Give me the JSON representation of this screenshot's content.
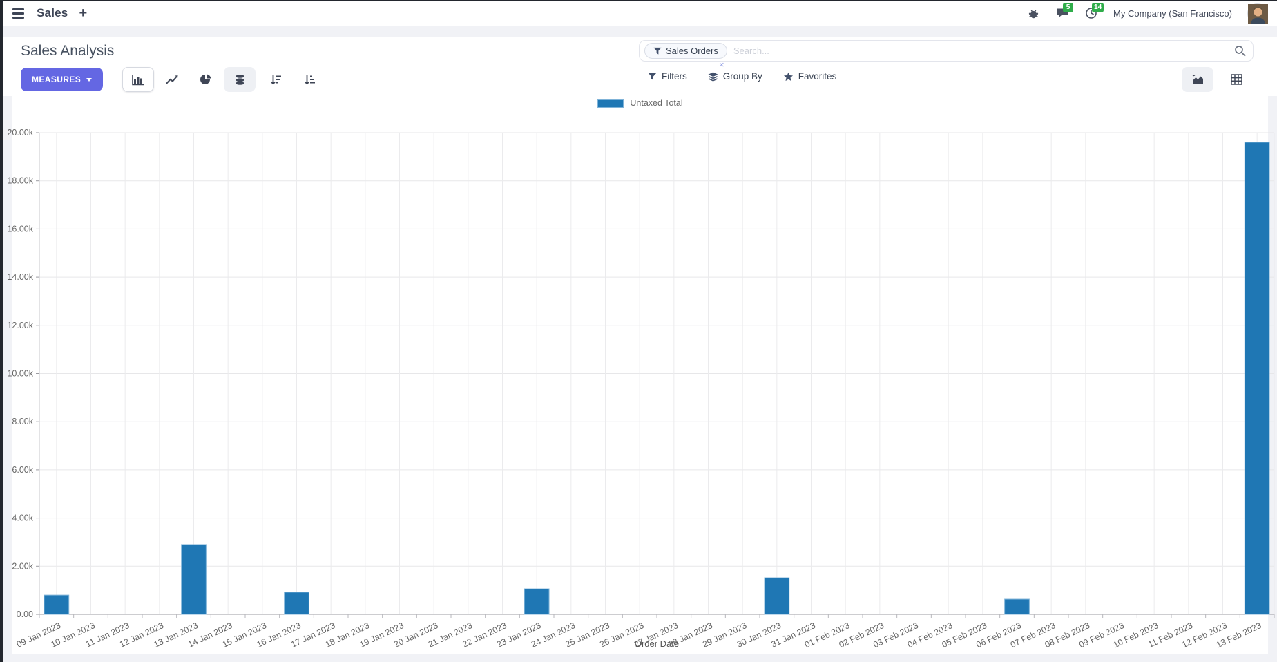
{
  "navbar": {
    "app_name": "Sales",
    "plus_label": "+",
    "messages_badge": "5",
    "activities_badge": "14",
    "company": "My Company (San Francisco)"
  },
  "control_panel": {
    "title": "Sales Analysis",
    "measures_label": "MEASURES",
    "search": {
      "facet": "Sales Orders",
      "placeholder": "Search...",
      "facet_remove": "×"
    },
    "filters_label": "Filters",
    "group_by_label": "Group By",
    "favorites_label": "Favorites"
  },
  "chart_data": {
    "type": "bar",
    "title": "",
    "legend_label": "Untaxed Total",
    "legend_position": "top",
    "series_color": "#1f77b4",
    "series_border_color": "#7fb3d8",
    "grid": true,
    "xlabel": "Order Date",
    "ylabel": "",
    "ylim": [
      0,
      20000
    ],
    "y_tick_step": 2000,
    "y_ticks": [
      "0.00",
      "2.00k",
      "4.00k",
      "6.00k",
      "8.00k",
      "10.00k",
      "12.00k",
      "14.00k",
      "16.00k",
      "18.00k",
      "20.00k"
    ],
    "categories": [
      "09 Jan 2023",
      "10 Jan 2023",
      "11 Jan 2023",
      "12 Jan 2023",
      "13 Jan 2023",
      "14 Jan 2023",
      "15 Jan 2023",
      "16 Jan 2023",
      "17 Jan 2023",
      "18 Jan 2023",
      "19 Jan 2023",
      "20 Jan 2023",
      "21 Jan 2023",
      "22 Jan 2023",
      "23 Jan 2023",
      "24 Jan 2023",
      "25 Jan 2023",
      "26 Jan 2023",
      "27 Jan 2023",
      "28 Jan 2023",
      "29 Jan 2023",
      "30 Jan 2023",
      "31 Jan 2023",
      "01 Feb 2023",
      "02 Feb 2023",
      "03 Feb 2023",
      "04 Feb 2023",
      "05 Feb 2023",
      "06 Feb 2023",
      "07 Feb 2023",
      "08 Feb 2023",
      "09 Feb 2023",
      "10 Feb 2023",
      "11 Feb 2023",
      "12 Feb 2023",
      "13 Feb 2023"
    ],
    "values": [
      800,
      0,
      0,
      0,
      2900,
      0,
      0,
      920,
      0,
      0,
      0,
      0,
      0,
      0,
      1060,
      0,
      0,
      0,
      0,
      0,
      0,
      1520,
      0,
      0,
      0,
      0,
      0,
      0,
      630,
      0,
      0,
      0,
      0,
      0,
      0,
      19600
    ]
  }
}
